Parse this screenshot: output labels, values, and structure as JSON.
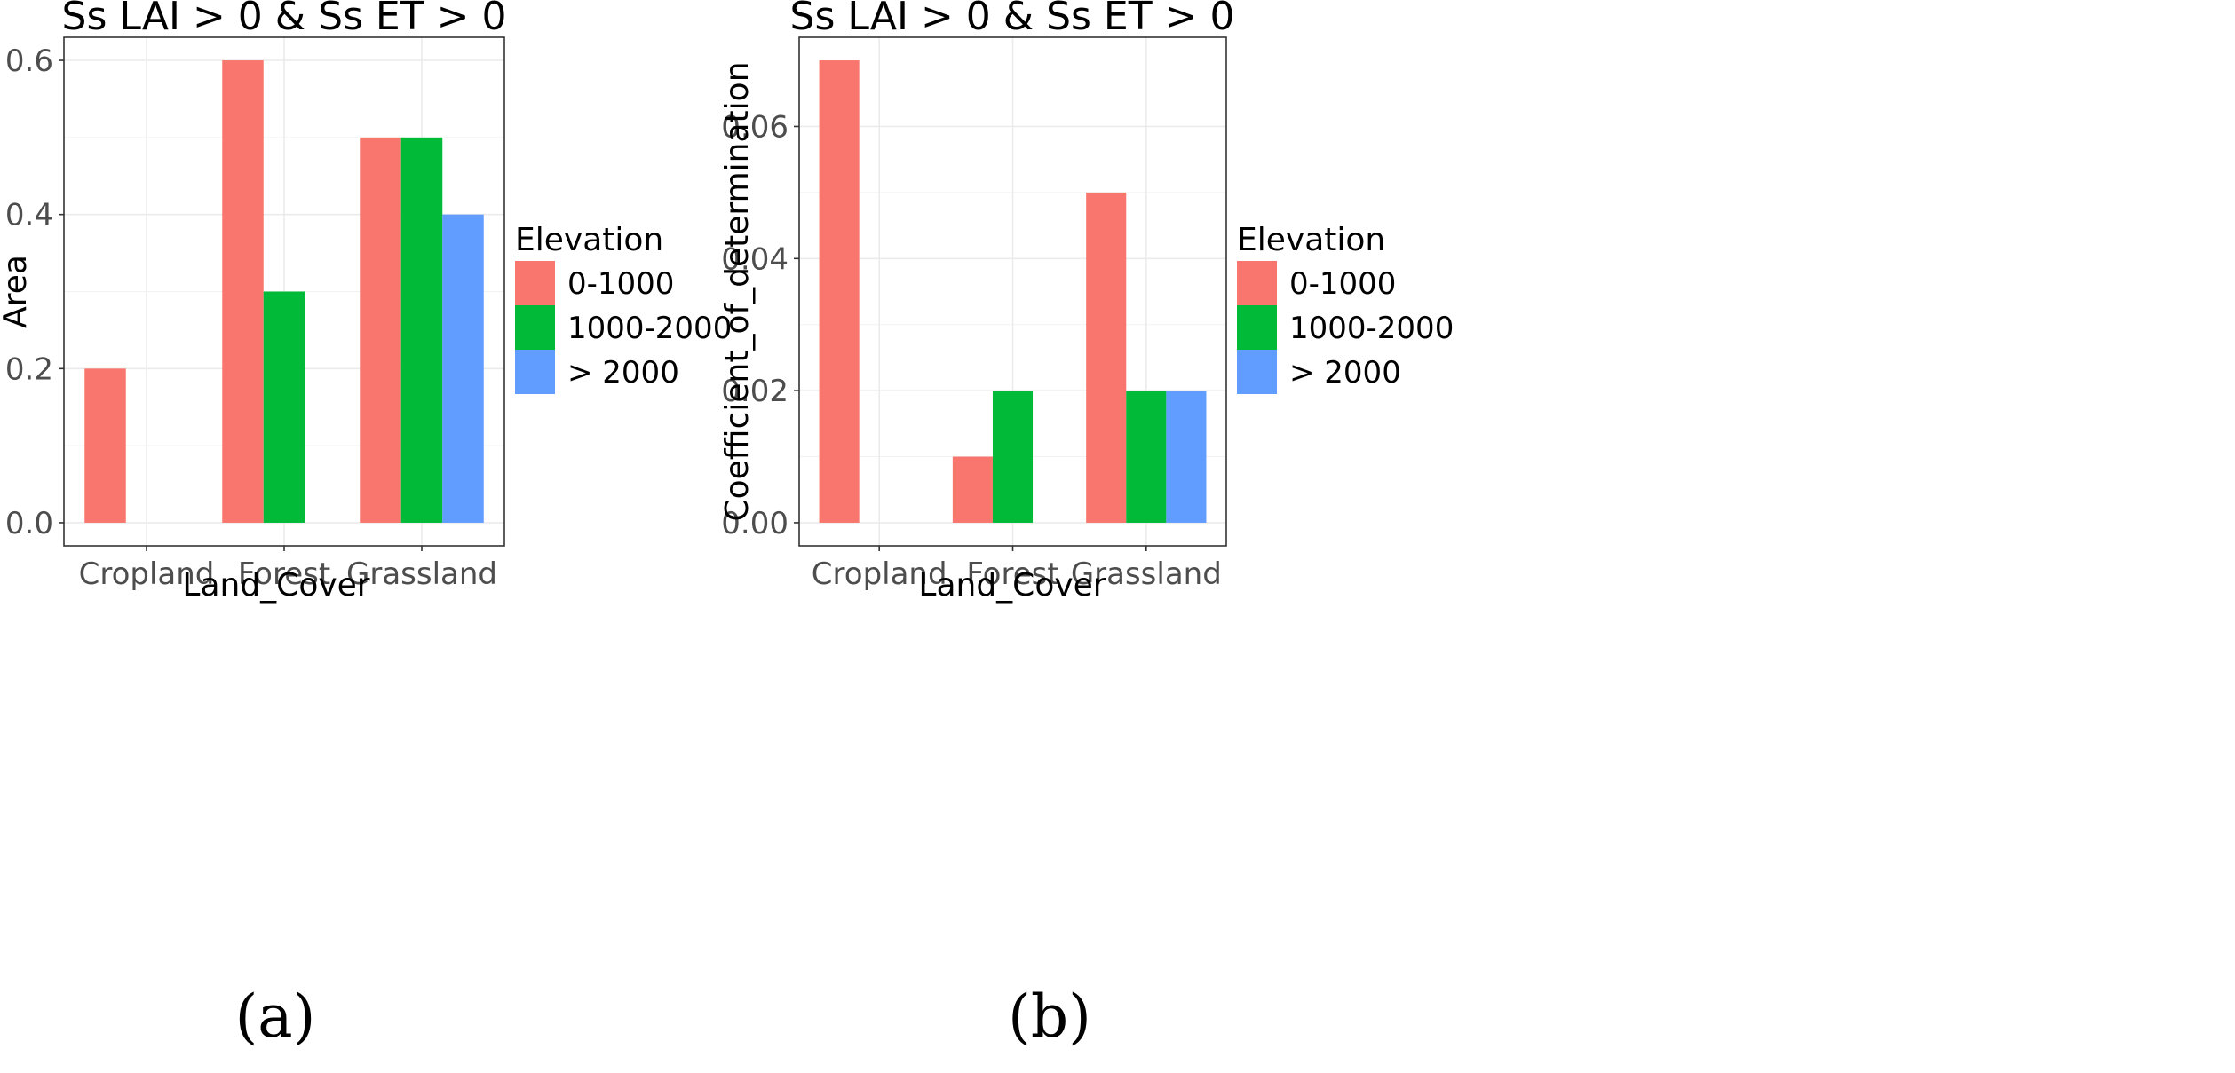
{
  "colors": {
    "0-1000": "#F8766D",
    "1000-2000": "#00BA38",
    "> 2000": "#619CFF"
  },
  "chart_data": [
    {
      "type": "bar",
      "panel_label": "(a)",
      "title": "Ss LAI > 0 & Ss ET > 0",
      "xlabel": "Land_Cover",
      "ylabel": "Area",
      "categories": [
        "Cropland",
        "Forest",
        "Grassland"
      ],
      "yticks": [
        0.0,
        0.2,
        0.4,
        0.6
      ],
      "ytick_labels": [
        "0.0",
        "0.2",
        "0.4",
        "0.6"
      ],
      "ylim": [
        -0.03,
        0.63
      ],
      "legend_title": "Elevation",
      "series": [
        {
          "name": "0-1000",
          "values": [
            0.2,
            0.6,
            0.5
          ]
        },
        {
          "name": "1000-2000",
          "values": [
            null,
            0.3,
            0.5
          ]
        },
        {
          "name": "> 2000",
          "values": [
            null,
            null,
            0.4
          ]
        }
      ]
    },
    {
      "type": "bar",
      "panel_label": "(b)",
      "title": "Ss LAI > 0 & Ss ET > 0",
      "xlabel": "Land_Cover",
      "ylabel": "Coefficient_of_determination",
      "categories": [
        "Cropland",
        "Forest",
        "Grassland"
      ],
      "yticks": [
        0.0,
        0.02,
        0.04,
        0.06
      ],
      "ytick_labels": [
        "0.00",
        "0.02",
        "0.04",
        "0.06"
      ],
      "ylim": [
        -0.0035,
        0.0735
      ],
      "legend_title": "Elevation",
      "series": [
        {
          "name": "0-1000",
          "values": [
            0.07,
            0.01,
            0.05
          ]
        },
        {
          "name": "1000-2000",
          "values": [
            null,
            0.02,
            0.02
          ]
        },
        {
          "name": "> 2000",
          "values": [
            null,
            null,
            0.02
          ]
        }
      ]
    }
  ]
}
